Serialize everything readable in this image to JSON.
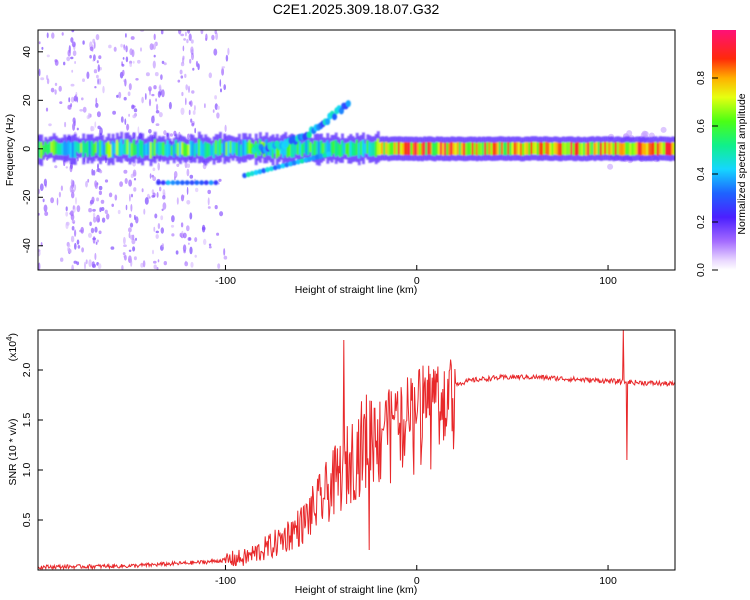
{
  "figure": {
    "title": "C2E1.2025.309.18.07.G32"
  },
  "colors": {
    "snr_line": "#e8282a",
    "axis": "#000000"
  },
  "chart_data": [
    {
      "type": "heatmap",
      "xlabel": "Height of straight line (km)",
      "ylabel": "Frequency (Hz)",
      "xlim": [
        -198,
        135
      ],
      "ylim": [
        -50,
        49
      ],
      "xticks": [
        -100,
        0,
        100
      ],
      "yticks": [
        -40,
        -20,
        0,
        20,
        40
      ],
      "grid": false,
      "colorbar": {
        "label": "Normalized spectral amplitude",
        "range": [
          0,
          1
        ],
        "ticks": [
          "0.0",
          "0.2",
          "0.4",
          "0.6",
          "0.8"
        ],
        "colormap": "rainbow (purple-blue-cyan-green-yellow-red-pink)"
      },
      "features": {
        "main_band": {
          "x_range": [
            -198,
            135
          ],
          "freq_center": 0,
          "freq_halfwidth": 2,
          "amplitude": "0.4-0.9"
        },
        "rising_branch": {
          "x_range": [
            -85,
            -35
          ],
          "freq_start": 0,
          "freq_end": 20
        },
        "lower_branch": {
          "x_range": [
            -90,
            -45
          ],
          "freq_start": -11,
          "freq_end": -2
        },
        "side_band": {
          "x_range": [
            -135,
            -105
          ],
          "freq": -14
        },
        "vertical_streaks_x": [
          -180,
          -168,
          -150,
          -135,
          -120
        ],
        "strongest_region": {
          "x_range": [
            -25,
            135
          ],
          "amplitude": 0.9
        }
      }
    },
    {
      "type": "line",
      "series": [
        {
          "x_range": [
            -198,
            135
          ],
          "envelope_x": [
            -198,
            -150,
            -110,
            -90,
            -75,
            -60,
            -50,
            -40,
            -30,
            -20,
            -10,
            0,
            10,
            20,
            30,
            40,
            50,
            60,
            70,
            80,
            90,
            100,
            110,
            120,
            135
          ],
          "envelope_y": [
            0.03,
            0.04,
            0.08,
            0.12,
            0.25,
            0.45,
            0.7,
            0.95,
            1.2,
            1.45,
            1.6,
            1.72,
            1.8,
            1.86,
            1.9,
            1.92,
            1.93,
            1.93,
            1.92,
            1.91,
            1.9,
            1.89,
            1.88,
            1.87,
            1.86
          ],
          "spikes": [
            {
              "x": -38,
              "y": 2.3
            },
            {
              "x": 108,
              "y": 2.4
            },
            {
              "x": 110,
              "y": 1.1
            },
            {
              "x": -25,
              "y": 0.2
            }
          ]
        }
      ],
      "xlabel": "Height of straight line (km)",
      "ylabel": "SNR (10 * v/v)",
      "ylabel_multiplier": "(x10",
      "ylabel_multiplier_exp": "4",
      "ylabel_multiplier_close": ")",
      "xlim": [
        -198,
        135
      ],
      "ylim": [
        0,
        2.4
      ],
      "xticks": [
        -100,
        0,
        100
      ],
      "yticks": [
        0.5,
        1.0,
        1.5,
        2.0
      ],
      "ytick_labels": [
        "0.5",
        "1.0",
        "1.5",
        "2.0"
      ],
      "grid": false
    }
  ]
}
